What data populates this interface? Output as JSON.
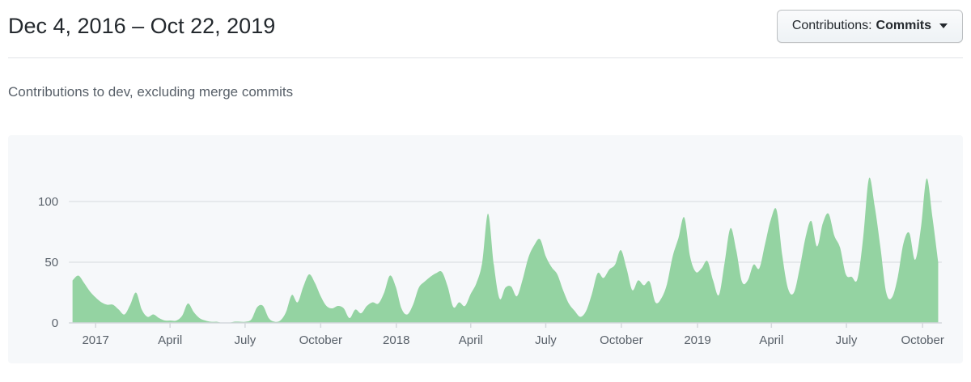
{
  "header": {
    "title": "Dec 4, 2016 – Oct 22, 2019",
    "filter_label": "Contributions:",
    "filter_value": "Commits"
  },
  "subtitle": "Contributions to dev, excluding merge commits",
  "chart_data": {
    "type": "area",
    "title": "Contributions to dev, excluding merge commits",
    "series_name": "Commits",
    "x_unit": "week",
    "x_start_label": "Dec 4, 2016",
    "x_end_label": "Oct 22, 2019",
    "values": [
      35,
      39,
      33,
      26,
      21,
      17,
      15,
      15,
      11,
      7,
      15,
      25,
      11,
      5,
      7,
      4,
      2,
      2,
      2,
      6,
      16,
      9,
      4,
      2,
      1,
      1,
      0,
      0,
      1,
      1,
      1,
      3,
      13,
      14,
      4,
      1,
      2,
      9,
      23,
      17,
      30,
      40,
      33,
      22,
      14,
      12,
      14,
      12,
      4,
      11,
      8,
      14,
      17,
      16,
      25,
      39,
      30,
      12,
      7,
      15,
      29,
      34,
      38,
      41,
      42,
      30,
      13,
      17,
      14,
      24,
      33,
      50,
      90,
      48,
      20,
      29,
      30,
      22,
      36,
      54,
      64,
      69,
      55,
      46,
      40,
      27,
      16,
      10,
      5,
      10,
      24,
      41,
      37,
      44,
      48,
      60,
      45,
      27,
      35,
      31,
      34,
      17,
      20,
      32,
      55,
      70,
      87,
      55,
      42,
      45,
      51,
      35,
      23,
      50,
      78,
      60,
      34,
      35,
      48,
      45,
      65,
      85,
      93,
      55,
      28,
      25,
      45,
      70,
      84,
      63,
      82,
      90,
      72,
      62,
      40,
      38,
      36,
      70,
      119,
      96,
      62,
      25,
      21,
      38,
      66,
      74,
      52,
      78,
      119,
      87,
      50
    ],
    "y_ticks": [
      0,
      50,
      100
    ],
    "y_gridlines": [
      50,
      100
    ],
    "ylim": [
      0,
      130
    ],
    "x_ticks": [
      {
        "label": "2017",
        "week": 4
      },
      {
        "label": "April",
        "week": 16.9
      },
      {
        "label": "July",
        "week": 29.9
      },
      {
        "label": "October",
        "week": 43.0
      },
      {
        "label": "2018",
        "week": 56.1
      },
      {
        "label": "April",
        "week": 69.0
      },
      {
        "label": "July",
        "week": 82.0
      },
      {
        "label": "October",
        "week": 95.1
      },
      {
        "label": "2019",
        "week": 108.3
      },
      {
        "label": "April",
        "week": 121.1
      },
      {
        "label": "July",
        "week": 134.1
      },
      {
        "label": "October",
        "week": 147.3
      }
    ],
    "grid": true,
    "legend": false,
    "colors": {
      "area_fill": "#94d3a2",
      "panel_background": "#f6f8fa",
      "gridline": "#e1e4e8",
      "axis_line": "#d4d8dc",
      "axis_label": "#586069"
    }
  }
}
